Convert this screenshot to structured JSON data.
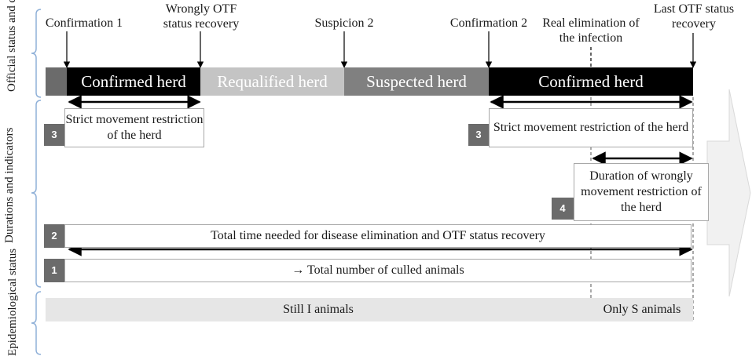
{
  "sections": {
    "official": "Official status and qualifications",
    "durations": "Durations and indicators",
    "epidemiological": "Epidemiological status"
  },
  "events": {
    "confirmation1": "Confirmation 1",
    "wrongly_otf": "Wrongly OTF status recovery",
    "suspicion2": "Suspicion 2",
    "confirmation2": "Confirmation 2",
    "real_elimination": "Real elimination of the infection",
    "last_otf": "Last OTF status recovery"
  },
  "statuses": [
    {
      "label": "Confirmed herd",
      "color": "#000000"
    },
    {
      "label": "Requalified herd",
      "color": "#c4c4c4"
    },
    {
      "label": "Suspected herd",
      "color": "#808080"
    },
    {
      "label": "Confirmed herd",
      "color": "#000000"
    }
  ],
  "indicators": {
    "strict1": {
      "num": "3",
      "text": "Strict movement restriction of the herd"
    },
    "strict2": {
      "num": "3",
      "text": "Strict movement restriction of the herd"
    },
    "wrongly": {
      "num": "4",
      "text": "Duration of wrongly movement restriction of the herd"
    },
    "total_time": {
      "num": "2",
      "text": "Total time needed for disease elimination and OTF status recovery"
    },
    "culled": {
      "num": "1",
      "text": "→ Total number of culled animals"
    }
  },
  "epi": {
    "still_i": "Still I animals",
    "only_s": "Only S animals"
  }
}
